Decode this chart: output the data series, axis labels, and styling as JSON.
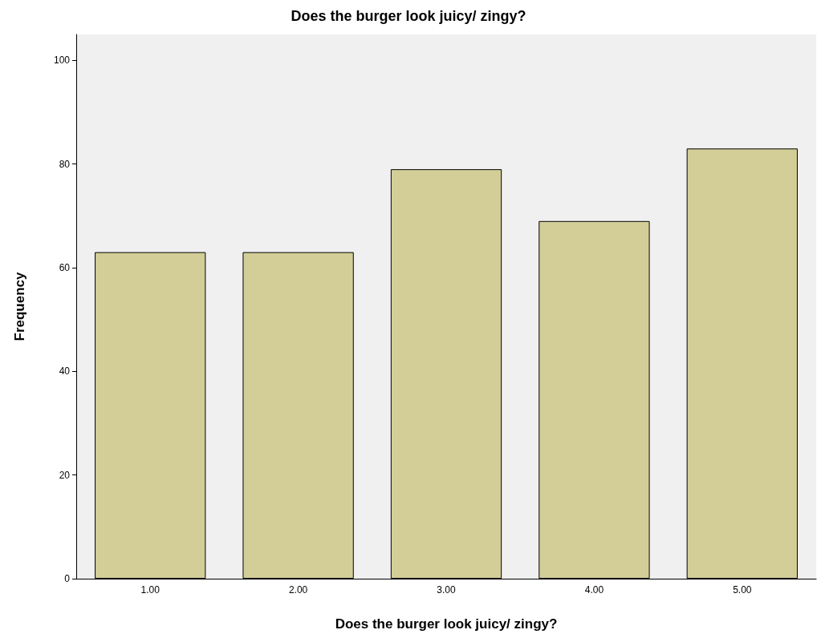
{
  "chart_data": {
    "type": "bar",
    "title": "Does the burger look juicy/ zingy?",
    "xlabel": "Does the burger look juicy/ zingy?",
    "ylabel": "Frequency",
    "categories": [
      "1.00",
      "2.00",
      "3.00",
      "4.00",
      "5.00"
    ],
    "values": [
      63,
      63,
      79,
      69,
      83
    ],
    "color": "#d3ce97",
    "ylim": [
      0,
      105
    ],
    "yticks": [
      0,
      20,
      40,
      60,
      80,
      100
    ],
    "grid": false
  }
}
